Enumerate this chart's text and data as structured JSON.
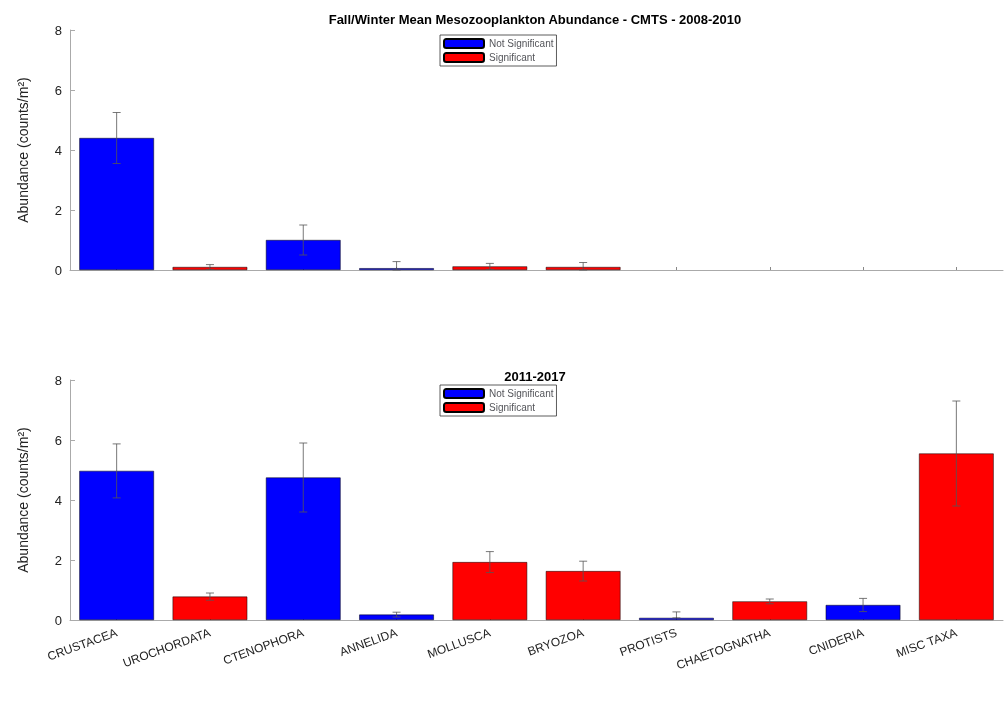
{
  "chart_data": [
    {
      "type": "bar",
      "title": "Fall/Winter Mean Mesozooplankton Abundance - CMTS - 2008-2010",
      "ylabel": "Abundance (counts/m²)",
      "categories": [
        null,
        null,
        null,
        null,
        null,
        null,
        null,
        null,
        null,
        null
      ],
      "series": [
        {
          "name": "Not Significant",
          "color": "#0000ff",
          "values": [
            4.4,
            null,
            1.0,
            0.06,
            null,
            null,
            null,
            null,
            null,
            null
          ],
          "errors": [
            0.85,
            null,
            0.5,
            [
              0,
              0.28
            ],
            null,
            null,
            null,
            null,
            null,
            null
          ]
        },
        {
          "name": "Significant",
          "color": "#ff0000",
          "values": [
            null,
            0.1,
            null,
            null,
            0.12,
            0.1,
            null,
            null,
            null,
            null
          ],
          "errors": [
            null,
            0.08,
            null,
            null,
            0.1,
            [
              0,
              0.25
            ],
            null,
            null,
            null,
            null
          ]
        }
      ],
      "ylim": [
        0,
        8
      ],
      "yticks": [
        0,
        2,
        4,
        6,
        8
      ],
      "grid": false,
      "legend": "top",
      "tick_labels": "y"
    },
    {
      "type": "bar",
      "title": "2011-2017",
      "ylabel": "Abundance (counts/m²)",
      "categories": [
        "CRUSTACEA",
        "UROCHORDATA",
        "CTENOPHORA",
        "ANNELIDA",
        "MOLLUSCA",
        "BRYOZOA",
        "PROTISTS",
        "CHAETOGNATHA",
        "CNIDERIA",
        "MISC TAXA"
      ],
      "series": [
        {
          "name": "Not Significant",
          "color": "#0000ff",
          "values": [
            4.97,
            null,
            4.75,
            0.18,
            null,
            null,
            0.07,
            null,
            0.5,
            null
          ],
          "errors": [
            0.9,
            null,
            1.15,
            0.08,
            null,
            null,
            [
              0.07,
              0.27
            ],
            null,
            0.22,
            null
          ]
        },
        {
          "name": "Significant",
          "color": "#ff0000",
          "values": [
            null,
            0.78,
            null,
            null,
            1.93,
            1.63,
            null,
            0.62,
            null,
            5.55
          ],
          "errors": [
            null,
            0.12,
            null,
            null,
            0.35,
            0.33,
            null,
            0.08,
            null,
            1.75
          ]
        }
      ],
      "ylim": [
        0,
        8
      ],
      "yticks": [
        0,
        2,
        4,
        6,
        8
      ],
      "grid": false,
      "legend": "top"
    }
  ]
}
